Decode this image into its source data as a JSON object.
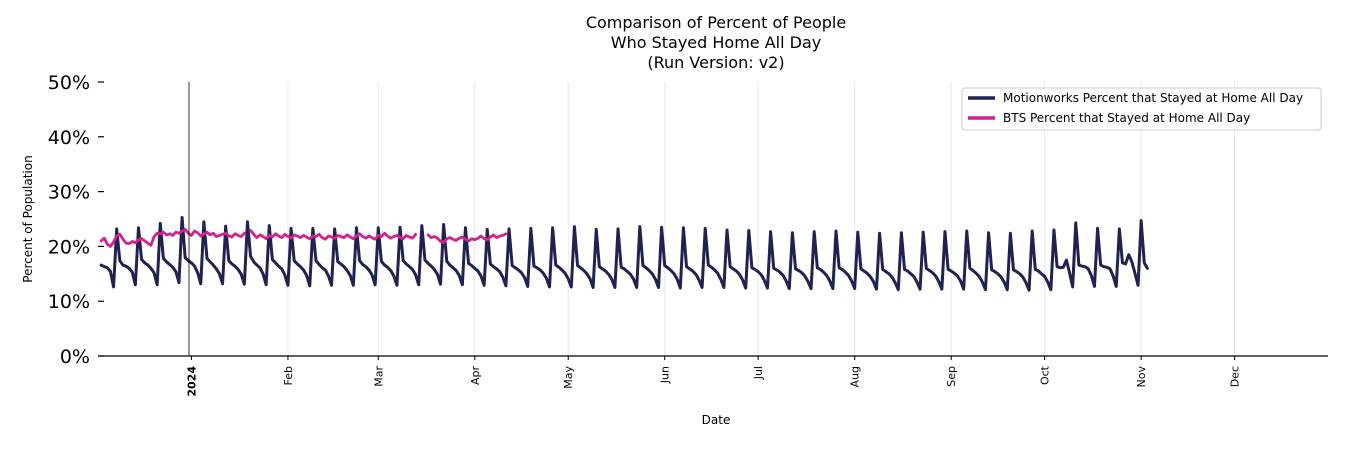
{
  "chart_data": {
    "type": "line",
    "title": [
      "Comparison of Percent of People",
      "Who Stayed Home All Day",
      "(Run Version: v2)"
    ],
    "xlabel": "Date",
    "ylabel": "Percent of Population",
    "xlim": [
      "2023-12-02",
      "2024-12-31"
    ],
    "ylim": [
      0,
      50
    ],
    "yticks": [
      0,
      10,
      20,
      30,
      40,
      50
    ],
    "ytick_labels": [
      "0%",
      "10%",
      "20%",
      "30%",
      "40%",
      "50%"
    ],
    "xticks": [
      {
        "date": "2024-01-01",
        "label": "2024",
        "bold": true
      },
      {
        "date": "2024-02-01",
        "label": "Feb"
      },
      {
        "date": "2024-03-01",
        "label": "Mar"
      },
      {
        "date": "2024-04-01",
        "label": "Apr"
      },
      {
        "date": "2024-05-01",
        "label": "May"
      },
      {
        "date": "2024-06-01",
        "label": "Jun"
      },
      {
        "date": "2024-07-01",
        "label": "Jul"
      },
      {
        "date": "2024-08-01",
        "label": "Aug"
      },
      {
        "date": "2024-09-01",
        "label": "Sep"
      },
      {
        "date": "2024-10-01",
        "label": "Oct"
      },
      {
        "date": "2024-11-01",
        "label": "Nov"
      },
      {
        "date": "2024-12-01",
        "label": "Dec"
      }
    ],
    "grid": "vertical",
    "legend_position": "top-right",
    "series": [
      {
        "name": "Motionworks Percent that Stayed at Home All Day",
        "color": "#1f2252",
        "start": "2023-12-03",
        "values": [
          16.6,
          16.3,
          16.1,
          15.4,
          12.6,
          23.2,
          17.4,
          16.6,
          16.4,
          16.0,
          15.3,
          13.0,
          23.4,
          17.6,
          17.0,
          16.6,
          16.0,
          15.2,
          13.0,
          24.2,
          17.8,
          17.2,
          16.7,
          16.2,
          15.4,
          13.4,
          25.3,
          17.9,
          17.4,
          17.0,
          16.4,
          15.2,
          13.2,
          24.5,
          17.8,
          17.2,
          16.6,
          15.9,
          15.0,
          13.2,
          23.7,
          17.4,
          16.8,
          16.4,
          15.8,
          14.9,
          13.1,
          24.5,
          18.2,
          17.2,
          16.6,
          16.1,
          15.0,
          13.0,
          23.8,
          17.6,
          17.0,
          16.4,
          15.9,
          14.8,
          12.9,
          23.3,
          17.4,
          16.8,
          16.3,
          15.7,
          14.7,
          12.8,
          23.3,
          17.4,
          16.7,
          16.1,
          15.7,
          14.6,
          12.9,
          23.2,
          17.2,
          16.8,
          16.3,
          15.6,
          14.7,
          12.9,
          23.4,
          17.4,
          16.7,
          16.3,
          15.7,
          14.8,
          13.0,
          23.4,
          17.3,
          16.6,
          16.2,
          15.6,
          14.6,
          12.9,
          23.5,
          17.4,
          16.8,
          16.3,
          15.8,
          14.8,
          13.0,
          23.8,
          17.5,
          16.9,
          16.4,
          15.8,
          14.9,
          13.1,
          24.0,
          17.3,
          16.6,
          16.1,
          15.6,
          14.7,
          13.0,
          23.4,
          16.9,
          16.5,
          16.0,
          15.5,
          14.6,
          12.9,
          23.1,
          16.8,
          16.3,
          15.9,
          15.4,
          14.4,
          12.8,
          23.2,
          16.5,
          16.1,
          15.7,
          15.2,
          14.3,
          12.7,
          23.3,
          16.4,
          16.1,
          15.7,
          15.1,
          14.2,
          12.6,
          23.4,
          16.6,
          16.2,
          15.7,
          15.1,
          14.1,
          12.6,
          23.6,
          16.5,
          16.1,
          15.6,
          15.0,
          14.1,
          12.5,
          23.1,
          16.3,
          15.9,
          15.5,
          14.9,
          14.0,
          12.5,
          23.2,
          16.2,
          15.9,
          15.4,
          14.9,
          14.0,
          12.5,
          23.6,
          16.5,
          16.1,
          15.6,
          15.0,
          14.0,
          12.5,
          23.5,
          16.5,
          16.1,
          15.6,
          15.0,
          14.0,
          12.4,
          23.4,
          16.3,
          15.9,
          15.5,
          14.9,
          13.9,
          12.5,
          23.3,
          16.6,
          16.2,
          15.7,
          15.1,
          14.0,
          12.5,
          23.0,
          16.3,
          15.9,
          15.5,
          14.9,
          13.9,
          12.4,
          22.9,
          16.1,
          15.8,
          15.4,
          14.8,
          13.8,
          12.4,
          22.7,
          16.0,
          15.7,
          15.3,
          14.7,
          13.7,
          12.3,
          22.5,
          15.9,
          15.6,
          15.2,
          14.6,
          13.6,
          12.3,
          22.7,
          16.1,
          15.8,
          15.3,
          14.7,
          13.7,
          12.3,
          22.8,
          16.1,
          15.8,
          15.3,
          14.7,
          13.7,
          12.3,
          22.6,
          15.9,
          15.5,
          15.1,
          14.5,
          13.6,
          12.2,
          22.4,
          15.8,
          15.4,
          15.0,
          14.4,
          13.4,
          12.1,
          22.5,
          15.8,
          15.5,
          15.0,
          14.5,
          13.5,
          12.2,
          22.6,
          16.0,
          15.6,
          15.2,
          14.6,
          13.6,
          12.2,
          22.7,
          15.8,
          15.5,
          15.1,
          14.6,
          13.7,
          12.2,
          22.8,
          16.0,
          15.6,
          15.1,
          14.5,
          13.5,
          12.1,
          22.5,
          15.7,
          15.4,
          15.0,
          14.4,
          13.5,
          12.1,
          22.4,
          15.7,
          15.4,
          15.0,
          14.4,
          13.4,
          12.0,
          22.8,
          15.8,
          15.5,
          15.0,
          14.5,
          13.5,
          12.1,
          23.0,
          16.3,
          16.1,
          16.2,
          17.5,
          15.2,
          12.6,
          24.3,
          16.6,
          16.4,
          16.3,
          15.9,
          14.7,
          12.7,
          23.3,
          16.6,
          16.3,
          16.2,
          15.9,
          14.6,
          12.7,
          23.2,
          17.0,
          16.8,
          18.5,
          17.2,
          15.1,
          12.9,
          24.7,
          17.0,
          16.0
        ]
      },
      {
        "name": "BTS Percent that Stayed at Home All Day",
        "color": "#d4218e",
        "segments": [
          {
            "start": "2023-12-03",
            "values": [
              21.0,
              21.5,
              20.4,
              20.0,
              20.8,
              21.9,
              22.2,
              21.3,
              20.6,
              20.5,
              20.9,
              20.7,
              21.2,
              21.4,
              21.0,
              20.6,
              20.2,
              21.8,
              22.4,
              22.3,
              22.6,
              22.1,
              22.3,
              22.0,
              22.6,
              22.4,
              22.8,
              23.1,
              22.4,
              22.0,
              22.8,
              22.5,
              21.9,
              22.3,
              22.6,
              22.1,
              22.4,
              21.8,
              22.0,
              22.2,
              22.4,
              21.9,
              21.7,
              22.3,
              22.0,
              21.8,
              22.4
            ]
          },
          {
            "start": "2024-01-20",
            "values": [
              22.9,
              22.2,
              21.6,
              22.1,
              21.8,
              21.4,
              22.0,
              21.7,
              22.3,
              21.9,
              21.6,
              22.2,
              21.8,
              21.5,
              22.1,
              21.9,
              21.6,
              22.0,
              21.7,
              21.4,
              21.9,
              21.8,
              22.2,
              21.6,
              21.3,
              21.9,
              21.7,
              21.5,
              22.0,
              21.8,
              21.6,
              22.1,
              21.7,
              21.4,
              21.9,
              22.3,
              21.8,
              21.5,
              21.9,
              21.6,
              21.3,
              22.0,
              21.8,
              22.4,
              21.9,
              21.5,
              21.8,
              22.0,
              21.6,
              21.4,
              22.0,
              21.7,
              21.5,
              22.2
            ]
          },
          {
            "start": "2024-03-17",
            "values": [
              22.1,
              21.6,
              21.8,
              21.5,
              20.9,
              20.7,
              21.4,
              21.6,
              21.3,
              21.1,
              21.5,
              21.7,
              21.3,
              21.0,
              21.4,
              21.2,
              21.5,
              21.9,
              21.4,
              21.2,
              21.7,
              22.1,
              21.6,
              21.9,
              22.0,
              22.3
            ]
          }
        ]
      }
    ]
  }
}
